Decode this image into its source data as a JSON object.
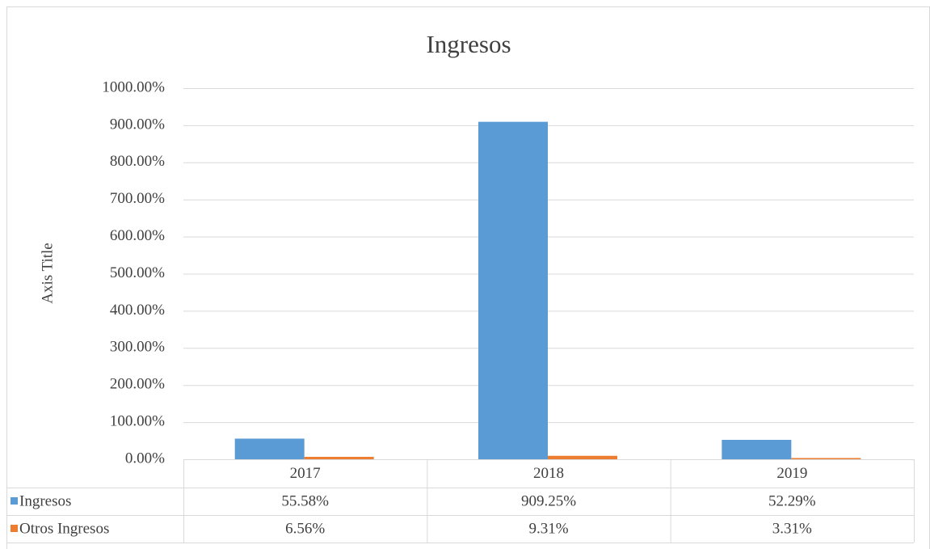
{
  "chart_data": {
    "type": "bar",
    "title": "Ingresos",
    "y_label": "Axis Title",
    "categories": [
      "2017",
      "2018",
      "2019"
    ],
    "series": [
      {
        "name": "Ingresos",
        "color": "#5b9bd5",
        "values": [
          55.58,
          909.25,
          52.29
        ],
        "value_labels": [
          "55.58%",
          "909.25%",
          "52.29%"
        ]
      },
      {
        "name": "Otros Ingresos",
        "color": "#ed7d31",
        "values": [
          6.56,
          9.31,
          3.31
        ],
        "value_labels": [
          "6.56%",
          "9.31%",
          "3.31%"
        ]
      }
    ],
    "ylim": [
      0,
      1000
    ],
    "yticks": [
      {
        "value": 0,
        "label": "0.00%"
      },
      {
        "value": 100,
        "label": "100.00%"
      },
      {
        "value": 200,
        "label": "200.00%"
      },
      {
        "value": 300,
        "label": "300.00%"
      },
      {
        "value": 400,
        "label": "400.00%"
      },
      {
        "value": 500,
        "label": "500.00%"
      },
      {
        "value": 600,
        "label": "600.00%"
      },
      {
        "value": 700,
        "label": "700.00%"
      },
      {
        "value": 800,
        "label": "800.00%"
      },
      {
        "value": 900,
        "label": "900.00%"
      },
      {
        "value": 1000,
        "label": "1000.00%"
      }
    ],
    "grid": true
  }
}
